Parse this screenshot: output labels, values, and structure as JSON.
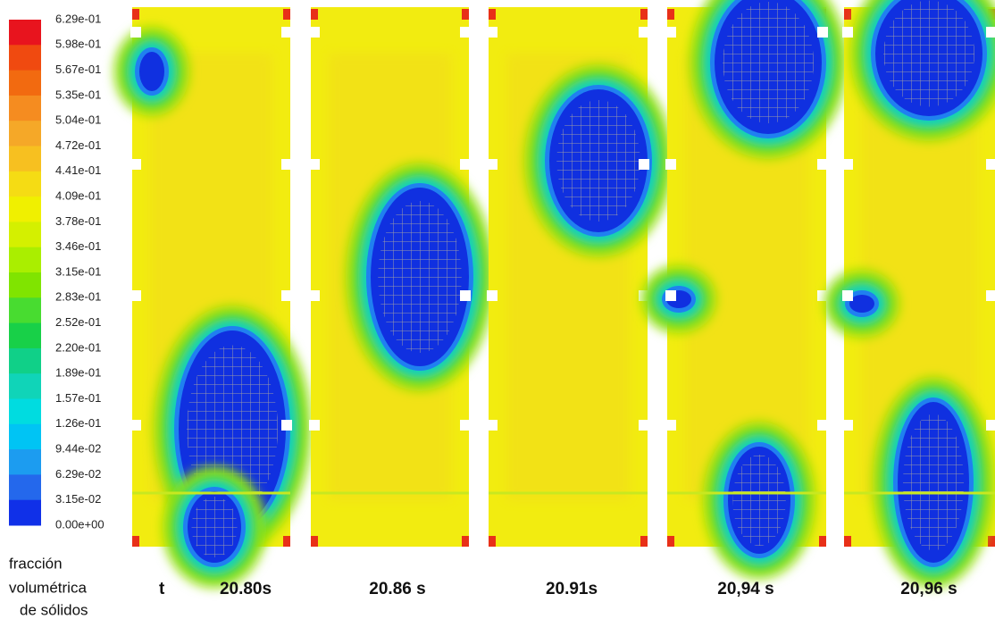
{
  "colorbar": {
    "labels": [
      "6.29e-01",
      "5.98e-01",
      "5.67e-01",
      "5.35e-01",
      "5.04e-01",
      "4.72e-01",
      "4.41e-01",
      "4.09e-01",
      "3.78e-01",
      "3.46e-01",
      "3.15e-01",
      "2.83e-01",
      "2.52e-01",
      "2.20e-01",
      "1.89e-01",
      "1.57e-01",
      "1.26e-01",
      "9.44e-02",
      "6.29e-02",
      "3.15e-02",
      "0.00e+00"
    ],
    "colors": [
      "#e8141e",
      "#f04a10",
      "#f26a10",
      "#f58c20",
      "#f5a828",
      "#f7c020",
      "#f5dc14",
      "#f0f000",
      "#d4f000",
      "#aaee00",
      "#80e400",
      "#48dc30",
      "#18d048",
      "#10d088",
      "#10d4b8",
      "#00dce0",
      "#00c4f4",
      "#1c9cf0",
      "#2468ec",
      "#1030e8"
    ]
  },
  "legend_title": [
    "fracción",
    "volumétrica",
    "de  sólidos"
  ],
  "time_symbol": "t",
  "times": [
    "20.80s",
    "20.86 s",
    "20.91s",
    "20,94  s",
    "20,96 s"
  ]
}
